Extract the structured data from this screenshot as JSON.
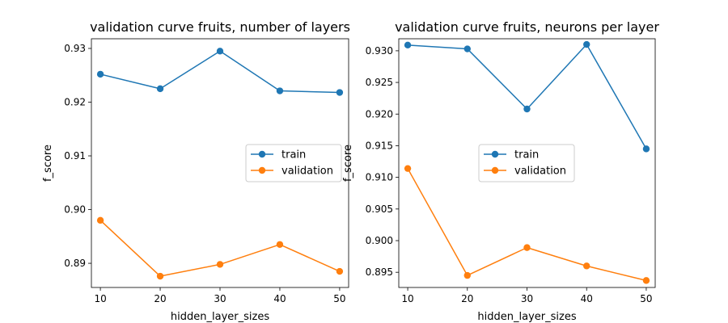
{
  "chart_data": [
    {
      "type": "line",
      "title": "validation curve fruits, number of layers",
      "xlabel": "hidden_layer_sizes",
      "ylabel": "f_score",
      "x": [
        10,
        20,
        30,
        40,
        50
      ],
      "series": [
        {
          "name": "train",
          "color": "#1f77b4",
          "values": [
            0.9252,
            0.9225,
            0.9295,
            0.9221,
            0.9218
          ]
        },
        {
          "name": "validation",
          "color": "#ff7f0e",
          "values": [
            0.898,
            0.8876,
            0.8898,
            0.8935,
            0.8885
          ]
        }
      ],
      "xlim": [
        8.5,
        51.5
      ],
      "ylim": [
        0.8855,
        0.9318
      ],
      "xticks": [
        10,
        20,
        30,
        40,
        50
      ],
      "yticks": [
        0.89,
        0.9,
        0.91,
        0.92,
        0.93
      ],
      "ytick_labels": [
        "0.89",
        "0.90",
        "0.91",
        "0.92",
        "0.93"
      ],
      "grid": false,
      "legend_position": "center-right"
    },
    {
      "type": "line",
      "title": "validation curve fruits, neurons per layer",
      "xlabel": "hidden_layer_sizes",
      "ylabel": "f_score",
      "x": [
        10,
        20,
        30,
        40,
        50
      ],
      "series": [
        {
          "name": "train",
          "color": "#1f77b4",
          "values": [
            0.9309,
            0.9303,
            0.9208,
            0.931,
            0.9145
          ]
        },
        {
          "name": "validation",
          "color": "#ff7f0e",
          "values": [
            0.9114,
            0.8945,
            0.8989,
            0.896,
            0.8937
          ]
        }
      ],
      "xlim": [
        8.5,
        51.5
      ],
      "ylim": [
        0.8926,
        0.9319
      ],
      "xticks": [
        10,
        20,
        30,
        40,
        50
      ],
      "yticks": [
        0.895,
        0.9,
        0.905,
        0.91,
        0.915,
        0.92,
        0.925,
        0.93
      ],
      "ytick_labels": [
        "0.895",
        "0.900",
        "0.905",
        "0.910",
        "0.915",
        "0.920",
        "0.925",
        "0.930"
      ],
      "grid": false,
      "legend_position": "center"
    }
  ]
}
